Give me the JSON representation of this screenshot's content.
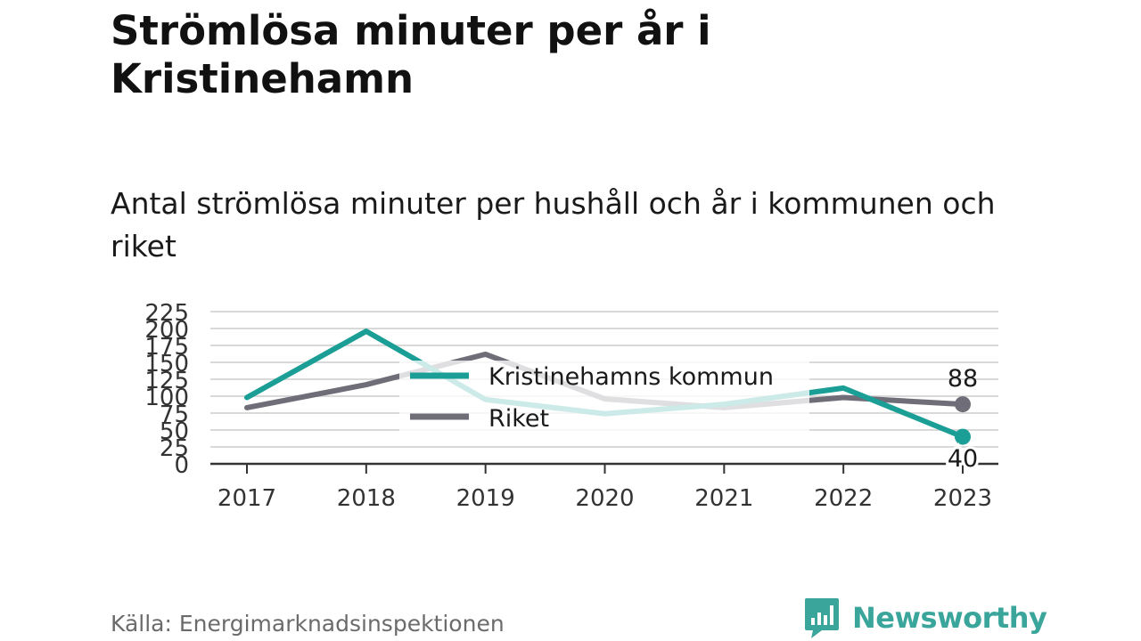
{
  "header": {
    "title": "Strömlösa minuter per år i Kristinehamn",
    "subtitle": "Antal strömlösa minuter per hushåll och år i kommunen och riket"
  },
  "footer": {
    "source": "Källa: Energimarknadsinspektionen",
    "brand": "Newsworthy",
    "brand_icon": "bar-chart-speech-bubble-icon"
  },
  "colors": {
    "kommun": "#1a9e95",
    "riket": "#6f6e78",
    "grid": "#d9d9d9",
    "axis": "#333333"
  },
  "chart_data": {
    "type": "line",
    "x": [
      "2017",
      "2018",
      "2019",
      "2020",
      "2021",
      "2022",
      "2023"
    ],
    "series": [
      {
        "name": "Kristinehamns kommun",
        "values": [
          98,
          196,
          95,
          74,
          88,
          112,
          40
        ]
      },
      {
        "name": "Riket",
        "values": [
          83,
          117,
          162,
          96,
          83,
          98,
          88
        ]
      }
    ],
    "yticks": [
      "0",
      "25",
      "50",
      "75",
      "100",
      "125",
      "150",
      "175",
      "200",
      "225"
    ],
    "ylim": [
      0,
      225
    ],
    "end_labels": [
      "40",
      "88"
    ],
    "grid": true,
    "legend_position": "center"
  }
}
